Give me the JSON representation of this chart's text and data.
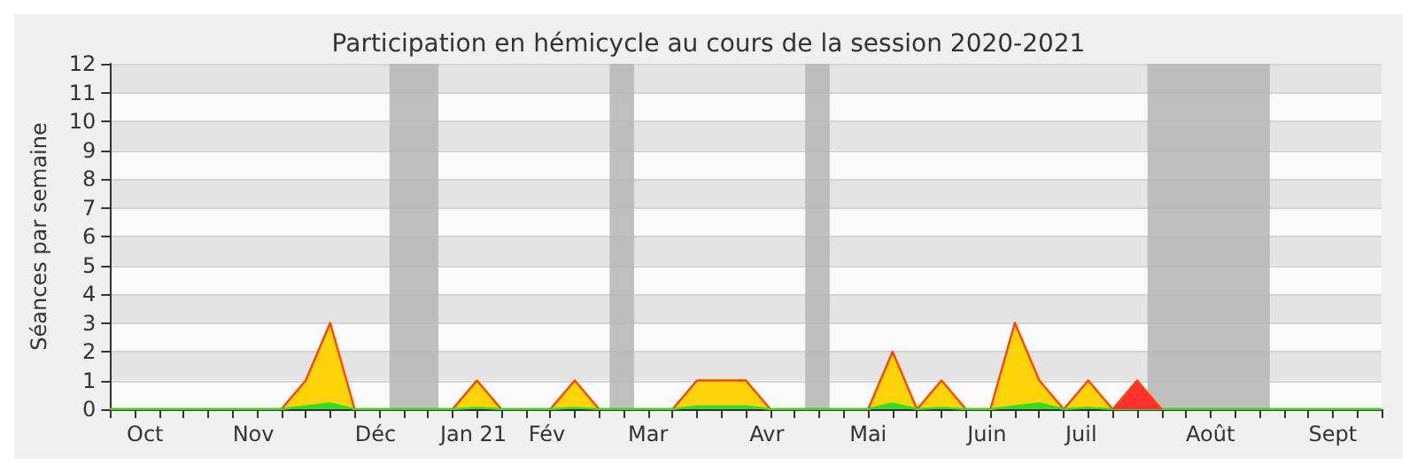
{
  "chart_data": {
    "type": "area",
    "title": "Participation en hémicycle au cours de la session 2020-2021",
    "ylabel": "Séances par semaine",
    "x": [
      "2020-10-05",
      "2020-10-12",
      "2020-10-19",
      "2020-10-26",
      "2020-11-02",
      "2020-11-09",
      "2020-11-16",
      "2020-11-23",
      "2020-11-30",
      "2020-12-07",
      "2020-12-14",
      "2020-12-21",
      "2020-12-28",
      "2021-01-04",
      "2021-01-11",
      "2021-01-18",
      "2021-01-25",
      "2021-02-01",
      "2021-02-08",
      "2021-02-15",
      "2021-02-22",
      "2021-03-01",
      "2021-03-08",
      "2021-03-15",
      "2021-03-22",
      "2021-03-29",
      "2021-04-05",
      "2021-04-12",
      "2021-04-19",
      "2021-04-26",
      "2021-05-03",
      "2021-05-10",
      "2021-05-17",
      "2021-05-24",
      "2021-05-31",
      "2021-06-07",
      "2021-06-14",
      "2021-06-21",
      "2021-06-28",
      "2021-07-05",
      "2021-07-12",
      "2021-07-19",
      "2021-07-26",
      "2021-08-02",
      "2021-08-09",
      "2021-08-16",
      "2021-08-23",
      "2021-08-30",
      "2021-09-06",
      "2021-09-13",
      "2021-09-20",
      "2021-09-27",
      "2021-10-04"
    ],
    "series": [
      {
        "color": "#ffd30a",
        "values": [
          0,
          0,
          0,
          0,
          0,
          0,
          0,
          0,
          1,
          3,
          0,
          0,
          0,
          0,
          0,
          1,
          0,
          0,
          0,
          1,
          0,
          0,
          0,
          0,
          1,
          1,
          1,
          0,
          0,
          0,
          0,
          0,
          2,
          0,
          1,
          0,
          0,
          3,
          1,
          0,
          1,
          0,
          0,
          0,
          0,
          0,
          0,
          0,
          0,
          0,
          0,
          0,
          0
        ]
      },
      {
        "color": "#33dd22",
        "values": [
          0,
          0,
          0,
          0,
          0,
          0,
          0,
          0,
          0.1,
          0.2,
          0,
          0,
          0,
          0,
          0,
          0.05,
          0,
          0,
          0,
          0.05,
          0,
          0,
          0,
          0,
          0.1,
          0.1,
          0.1,
          0,
          0,
          0,
          0,
          0,
          0.2,
          0,
          0.05,
          0,
          0,
          0.1,
          0.2,
          0,
          0.05,
          0,
          0,
          0,
          0,
          0,
          0,
          0,
          0,
          0,
          0,
          0,
          0
        ]
      },
      {
        "color": "#ff3030",
        "values": [
          null,
          null,
          null,
          null,
          null,
          null,
          null,
          null,
          null,
          null,
          null,
          null,
          null,
          null,
          null,
          null,
          null,
          null,
          null,
          null,
          null,
          null,
          null,
          null,
          null,
          null,
          null,
          null,
          null,
          null,
          null,
          null,
          null,
          null,
          null,
          null,
          null,
          null,
          null,
          null,
          null,
          0,
          1,
          0,
          null,
          null,
          null,
          null,
          null,
          null,
          null,
          null,
          null
        ]
      }
    ],
    "bands": [
      {
        "axis": "x",
        "from": "2020-12-24",
        "to": "2021-01-07",
        "color": "#b8b8b8"
      },
      {
        "axis": "x",
        "from": "2021-02-25",
        "to": "2021-03-04",
        "color": "#b8b8b8"
      },
      {
        "axis": "x",
        "from": "2021-04-22",
        "to": "2021-04-29",
        "color": "#b8b8b8"
      },
      {
        "axis": "x",
        "from": "2021-07-29",
        "to": "2021-09-02",
        "color": "#b8b8b8"
      }
    ],
    "xlim": [
      "2020-10-05",
      "2021-10-04"
    ],
    "xticks": [
      {
        "value": "2020-10-15",
        "label": "Oct"
      },
      {
        "value": "2020-11-15",
        "label": "Nov"
      },
      {
        "value": "2020-12-20",
        "label": "Déc"
      },
      {
        "value": "2021-01-17",
        "label": "Jan 21"
      },
      {
        "value": "2021-02-07",
        "label": "Fév"
      },
      {
        "value": "2021-03-08",
        "label": "Mar"
      },
      {
        "value": "2021-04-11",
        "label": "Avr"
      },
      {
        "value": "2021-05-10",
        "label": "Mai"
      },
      {
        "value": "2021-06-13",
        "label": "Juin"
      },
      {
        "value": "2021-07-10",
        "label": "Juil"
      },
      {
        "value": "2021-08-16",
        "label": "Août"
      },
      {
        "value": "2021-09-20",
        "label": "Sept"
      }
    ],
    "ylim": [
      0,
      12
    ],
    "yticks": [
      0,
      1,
      2,
      3,
      4,
      5,
      6,
      7,
      8,
      9,
      10,
      11,
      12
    ],
    "grid": "y",
    "marker": "none"
  }
}
